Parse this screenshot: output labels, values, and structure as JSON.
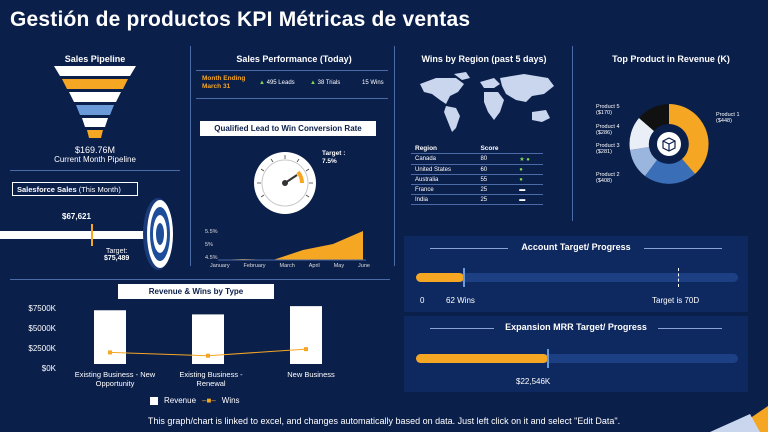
{
  "title": "Gestión de productos KPI Métricas de ventas",
  "pipeline": {
    "heading": "Sales Pipeline",
    "value": "$169.76M",
    "caption": "Current Month Pipeline"
  },
  "salesforce": {
    "heading": "Salesforce Sales",
    "heading_suffix": "(This Month)",
    "current": "$67,621",
    "target_label": "Target:",
    "target_value": "$75,489",
    "progress_fraction": 0.9
  },
  "performance": {
    "heading": "Sales Performance (Today)",
    "month_label": "Month Ending",
    "month_date": "March 31",
    "leads": "495 Leads",
    "trials": "38 Trials",
    "wins": "15 Wins"
  },
  "conversion": {
    "heading": "Qualified Lead to Win Conversion Rate",
    "target_label": "Target :",
    "target_value": "7.5%",
    "y_ticks": [
      "5.5%",
      "5%",
      "4.5%"
    ],
    "x_ticks": [
      "January",
      "February",
      "March",
      "April",
      "May",
      "June"
    ]
  },
  "regions": {
    "heading": "Wins by Region (past 5 days)",
    "col_region": "Region",
    "col_score": "Score",
    "rows": [
      {
        "region": "Canada",
        "score": "80",
        "mark": "★ ●"
      },
      {
        "region": "United States",
        "score": "60",
        "mark": "●"
      },
      {
        "region": "Australia",
        "score": "55",
        "mark": "●"
      },
      {
        "region": "France",
        "score": "25",
        "mark": "▬"
      },
      {
        "region": "India",
        "score": "25",
        "mark": "▬"
      }
    ]
  },
  "top_product": {
    "heading": "Top Product in Revenue (K)",
    "labels": [
      {
        "name": "Product 1",
        "value": "($448)"
      },
      {
        "name": "Product 2",
        "value": "($408)"
      },
      {
        "name": "Product 3",
        "value": "($281)"
      },
      {
        "name": "Product 4",
        "value": "($286)"
      },
      {
        "name": "Product 5",
        "value": "($170)"
      }
    ]
  },
  "account_target": {
    "heading": "Account Target/ Progress",
    "start": "0",
    "current": "62 Wins",
    "target": "Target is 70D",
    "progress_fraction": 0.15
  },
  "expansion": {
    "heading": "Expansion MRR Target/ Progress",
    "current": "$22,546K",
    "progress_fraction": 0.41
  },
  "revenue_wins": {
    "heading": "Revenue  & Wins by Type",
    "y_ticks": [
      "$7500K",
      "$5000K",
      "$2500K",
      "$0K"
    ],
    "legend_revenue": "Revenue",
    "legend_wins": "Wins"
  },
  "chart_data": {
    "type": "bar",
    "title": "Revenue  & Wins by Type",
    "categories": [
      "Existing Business - New Opportunity",
      "Existing Business - Renewal",
      "New Business"
    ],
    "series": [
      {
        "name": "Revenue",
        "values": [
          6500,
          6000,
          7000
        ]
      },
      {
        "name": "Wins",
        "values": [
          1400,
          1000,
          1800
        ]
      }
    ],
    "ylim": [
      0,
      7500
    ]
  },
  "footer": "This graph/chart is linked to excel, and changes automatically  based on data. Just left click on it and select \"Edit Data\".",
  "colors": {
    "accent": "#f5a623",
    "background": "#0b1f4b",
    "panel": "#0e2860",
    "line": "#4a6aa8"
  }
}
